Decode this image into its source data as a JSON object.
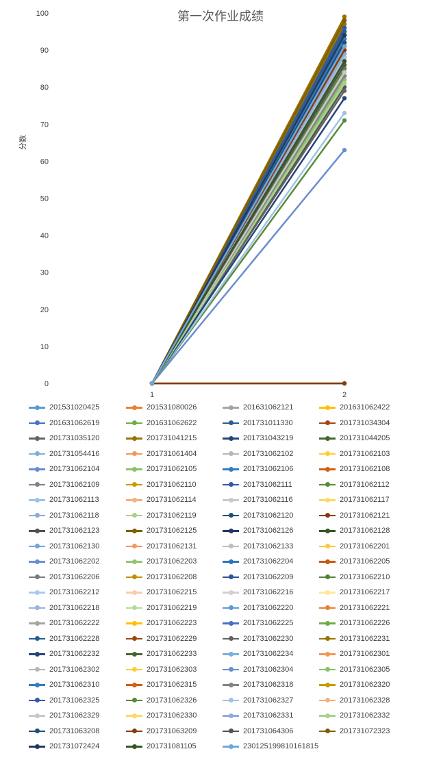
{
  "chart_data": {
    "type": "line",
    "title": "第一次作业成绩",
    "ylabel": "分数",
    "xlabel": "",
    "x": [
      "1",
      "2"
    ],
    "ylim": [
      0,
      100
    ],
    "yticks": [
      0,
      10,
      20,
      30,
      40,
      50,
      60,
      70,
      80,
      90,
      100
    ],
    "grid": false,
    "legend_position": "bottom",
    "series": [
      {
        "name": "201531020425",
        "color": "#5B9BD5",
        "values": [
          0,
          93
        ]
      },
      {
        "name": "201531080026",
        "color": "#ED7D31",
        "values": [
          0,
          88
        ]
      },
      {
        "name": "201631062121",
        "color": "#A5A5A5",
        "values": [
          0,
          85
        ]
      },
      {
        "name": "201631062422",
        "color": "#FFC000",
        "values": [
          0,
          90
        ]
      },
      {
        "name": "201631062619",
        "color": "#4472C4",
        "values": [
          0,
          95
        ]
      },
      {
        "name": "201631062622",
        "color": "#70AD47",
        "values": [
          0,
          82
        ]
      },
      {
        "name": "201731011330",
        "color": "#255E91",
        "values": [
          0,
          94
        ]
      },
      {
        "name": "201731034304",
        "color": "#9E480E",
        "values": [
          0,
          0
        ]
      },
      {
        "name": "201731035120",
        "color": "#636363",
        "values": [
          0,
          88
        ]
      },
      {
        "name": "201731041215",
        "color": "#997300",
        "values": [
          0,
          99
        ]
      },
      {
        "name": "201731043219",
        "color": "#264478",
        "values": [
          0,
          96
        ]
      },
      {
        "name": "201731044205",
        "color": "#43682B",
        "values": [
          0,
          87
        ]
      },
      {
        "name": "201731054416",
        "color": "#7CAFDD",
        "values": [
          0,
          92
        ]
      },
      {
        "name": "201731061404",
        "color": "#F1975A",
        "values": [
          0,
          89
        ]
      },
      {
        "name": "201731062102",
        "color": "#B7B7B7",
        "values": [
          0,
          84
        ]
      },
      {
        "name": "201731062103",
        "color": "#FFCD33",
        "values": [
          0,
          91
        ]
      },
      {
        "name": "201731062104",
        "color": "#698ED0",
        "values": [
          0,
          63
        ]
      },
      {
        "name": "201731062105",
        "color": "#8CC168",
        "values": [
          0,
          81
        ]
      },
      {
        "name": "201731062106",
        "color": "#327DC2",
        "values": [
          0,
          95
        ]
      },
      {
        "name": "201731062108",
        "color": "#D26012",
        "values": [
          0,
          91
        ]
      },
      {
        "name": "201731062109",
        "color": "#848484",
        "values": [
          0,
          83
        ]
      },
      {
        "name": "201731062110",
        "color": "#CC9A00",
        "values": [
          0,
          92
        ]
      },
      {
        "name": "201731062111",
        "color": "#335AA1",
        "values": [
          0,
          97
        ]
      },
      {
        "name": "201731062112",
        "color": "#5A8A39",
        "values": [
          0,
          71
        ]
      },
      {
        "name": "201731062113",
        "color": "#9DC3E6",
        "values": [
          0,
          73
        ]
      },
      {
        "name": "201731062114",
        "color": "#F4B183",
        "values": [
          0,
          86
        ]
      },
      {
        "name": "201731062116",
        "color": "#C9C9C9",
        "values": [
          0,
          85
        ]
      },
      {
        "name": "201731062117",
        "color": "#FFD966",
        "values": [
          0,
          90
        ]
      },
      {
        "name": "201731062118",
        "color": "#8FAADC",
        "values": [
          0,
          89
        ]
      },
      {
        "name": "201731062119",
        "color": "#A9D18E",
        "values": [
          0,
          83
        ]
      },
      {
        "name": "201731062120",
        "color": "#1F4E79",
        "values": [
          0,
          93
        ]
      },
      {
        "name": "201731062121",
        "color": "#843C0C",
        "values": [
          0,
          0
        ]
      },
      {
        "name": "201731062123",
        "color": "#525252",
        "values": [
          0,
          80
        ]
      },
      {
        "name": "201731062125",
        "color": "#7F6000",
        "values": [
          0,
          98
        ]
      },
      {
        "name": "201731062126",
        "color": "#203864",
        "values": [
          0,
          94
        ]
      },
      {
        "name": "201731062128",
        "color": "#375623",
        "values": [
          0,
          87
        ]
      },
      {
        "name": "201731062130",
        "color": "#6FA8DC",
        "values": [
          0,
          91
        ]
      },
      {
        "name": "201731062131",
        "color": "#F19C65",
        "values": [
          0,
          88
        ]
      },
      {
        "name": "201731062133",
        "color": "#BFBFBF",
        "values": [
          0,
          84
        ]
      },
      {
        "name": "201731062201",
        "color": "#FFC83D",
        "values": [
          0,
          89
        ]
      },
      {
        "name": "201731062202",
        "color": "#6D8FD0",
        "values": [
          0,
          90
        ]
      },
      {
        "name": "201731062203",
        "color": "#93C572",
        "values": [
          0,
          82
        ]
      },
      {
        "name": "201731062204",
        "color": "#2E75B6",
        "values": [
          0,
          96
        ]
      },
      {
        "name": "201731062205",
        "color": "#C55A11",
        "values": [
          0,
          92
        ]
      },
      {
        "name": "201731062206",
        "color": "#7B7B7B",
        "values": [
          0,
          83
        ]
      },
      {
        "name": "201731062208",
        "color": "#BF9000",
        "values": [
          0,
          91
        ]
      },
      {
        "name": "201731062209",
        "color": "#2F5597",
        "values": [
          0,
          95
        ]
      },
      {
        "name": "201731062210",
        "color": "#548235",
        "values": [
          0,
          86
        ]
      },
      {
        "name": "201731062212",
        "color": "#A9CCEE",
        "values": [
          0,
          89
        ]
      },
      {
        "name": "201731062215",
        "color": "#F8CBAD",
        "values": [
          0,
          87
        ]
      },
      {
        "name": "201731062216",
        "color": "#D0D0D0",
        "values": [
          0,
          85
        ]
      },
      {
        "name": "201731062217",
        "color": "#FFE699",
        "values": [
          0,
          88
        ]
      },
      {
        "name": "201731062218",
        "color": "#9BB1E0",
        "values": [
          0,
          90
        ]
      },
      {
        "name": "201731062219",
        "color": "#B4DA9A",
        "values": [
          0,
          84
        ]
      },
      {
        "name": "201731062220",
        "color": "#5B9BD5",
        "values": [
          0,
          93
        ]
      },
      {
        "name": "201731062221",
        "color": "#ED7D31",
        "values": [
          0,
          91
        ]
      },
      {
        "name": "201731062222",
        "color": "#A5A5A5",
        "values": [
          0,
          86
        ]
      },
      {
        "name": "201731062223",
        "color": "#FFC000",
        "values": [
          0,
          92
        ]
      },
      {
        "name": "201731062225",
        "color": "#4472C4",
        "values": [
          0,
          94
        ]
      },
      {
        "name": "201731062226",
        "color": "#70AD47",
        "values": [
          0,
          83
        ]
      },
      {
        "name": "201731062228",
        "color": "#255E91",
        "values": [
          0,
          95
        ]
      },
      {
        "name": "201731062229",
        "color": "#9E480E",
        "values": [
          0,
          89
        ]
      },
      {
        "name": "201731062230",
        "color": "#636363",
        "values": [
          0,
          79
        ]
      },
      {
        "name": "201731062231",
        "color": "#997300",
        "values": [
          0,
          97
        ]
      },
      {
        "name": "201731062232",
        "color": "#264478",
        "values": [
          0,
          77
        ]
      },
      {
        "name": "201731062233",
        "color": "#43682B",
        "values": [
          0,
          88
        ]
      },
      {
        "name": "201731062234",
        "color": "#7CAFDD",
        "values": [
          0,
          92
        ]
      },
      {
        "name": "201731062301",
        "color": "#F1975A",
        "values": [
          0,
          90
        ]
      },
      {
        "name": "201731062302",
        "color": "#B7B7B7",
        "values": [
          0,
          84
        ]
      },
      {
        "name": "201731062303",
        "color": "#FFCD33",
        "values": [
          0,
          89
        ]
      },
      {
        "name": "201731062304",
        "color": "#698ED0",
        "values": [
          0,
          91
        ]
      },
      {
        "name": "201731062305",
        "color": "#8CC168",
        "values": [
          0,
          82
        ]
      },
      {
        "name": "201731062310",
        "color": "#327DC2",
        "values": [
          0,
          93
        ]
      },
      {
        "name": "201731062315",
        "color": "#D26012",
        "values": [
          0,
          90
        ]
      },
      {
        "name": "201731062318",
        "color": "#848484",
        "values": [
          0,
          83
        ]
      },
      {
        "name": "201731062320",
        "color": "#CC9A00",
        "values": [
          0,
          94
        ]
      },
      {
        "name": "201731062325",
        "color": "#335AA1",
        "values": [
          0,
          96
        ]
      },
      {
        "name": "201731062326",
        "color": "#5A8A39",
        "values": [
          0,
          85
        ]
      },
      {
        "name": "201731062327",
        "color": "#9DC3E6",
        "values": [
          0,
          88
        ]
      },
      {
        "name": "201731062328",
        "color": "#F4B183",
        "values": [
          0,
          87
        ]
      },
      {
        "name": "201731062329",
        "color": "#C9C9C9",
        "values": [
          0,
          84
        ]
      },
      {
        "name": "201731062330",
        "color": "#FFD966",
        "values": [
          0,
          90
        ]
      },
      {
        "name": "201731062331",
        "color": "#8FAADC",
        "values": [
          0,
          89
        ]
      },
      {
        "name": "201731062332",
        "color": "#A9D18E",
        "values": [
          0,
          81
        ]
      },
      {
        "name": "201731063208",
        "color": "#1F4E79",
        "values": [
          0,
          92
        ]
      },
      {
        "name": "201731063209",
        "color": "#843C0C",
        "values": [
          0,
          90
        ]
      },
      {
        "name": "201731064306",
        "color": "#525252",
        "values": [
          0,
          86
        ]
      },
      {
        "name": "201731072323",
        "color": "#7F6000",
        "values": [
          0,
          98
        ]
      },
      {
        "name": "201731072424",
        "color": "#203864",
        "values": [
          0,
          94
        ]
      },
      {
        "name": "201731081105",
        "color": "#375623",
        "values": [
          0,
          87
        ]
      },
      {
        "name": "230125199810161815",
        "color": "#6FA8DC",
        "values": [
          0,
          91
        ]
      }
    ]
  }
}
